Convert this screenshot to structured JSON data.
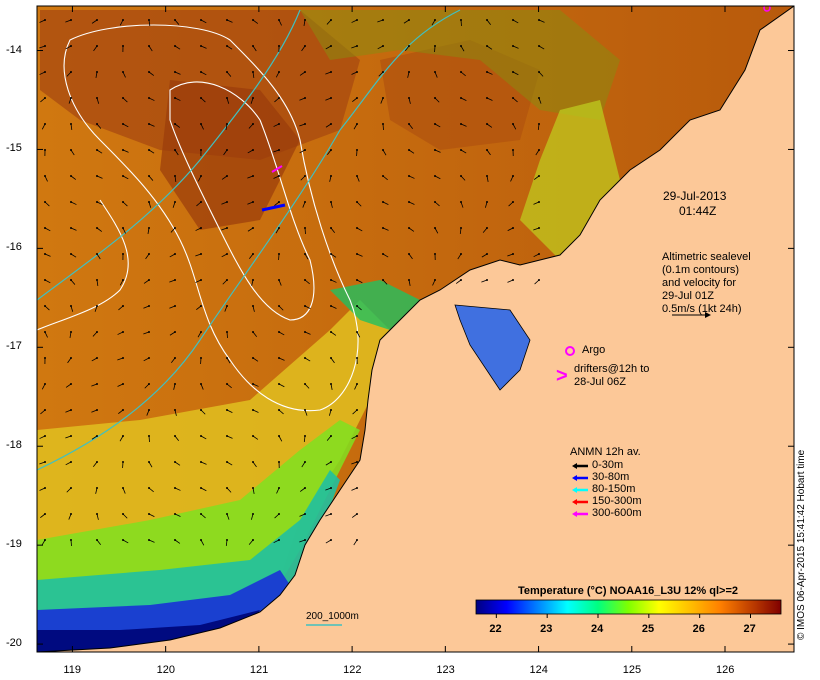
{
  "map": {
    "lon_ticks": [
      "119",
      "120",
      "121",
      "122",
      "123",
      "124",
      "125",
      "126"
    ],
    "lat_ticks": [
      "-14",
      "-15",
      "-16",
      "-17",
      "-18",
      "-19",
      "-20"
    ],
    "extent": {
      "lon_min": 118.62,
      "lon_max": 126.74,
      "lat_min": -20.08,
      "lat_max": -13.55
    }
  },
  "annotations": {
    "date": "29-Jul-2013",
    "time": "01:44Z",
    "alt_line1": "Altimetric sealevel",
    "alt_line2": "(0.1m contours)",
    "alt_line3": "and velocity for",
    "alt_line4": "29-Jul 01Z",
    "alt_line5": "0.5m/s (1kt 24h)",
    "argo": "Argo",
    "drifters_line1": "drifters@12h to",
    "drifters_line2": "28-Jul 06Z",
    "drifters_symbol": ">",
    "depth_contours": "200_1000m"
  },
  "anmn_legend": {
    "title": "ANMN 12h av.",
    "items": [
      {
        "label": "0-30m",
        "color": "#000000"
      },
      {
        "label": "30-80m",
        "color": "#0000ff"
      },
      {
        "label": "80-150m",
        "color": "#00ffff"
      },
      {
        "label": "150-300m",
        "color": "#ff0000"
      },
      {
        "label": "300-600m",
        "color": "#ff00ff"
      }
    ]
  },
  "colorbar": {
    "title": "Temperature (°C) NOAA16_L3U 12% ql>=2",
    "ticks": [
      "22",
      "23",
      "24",
      "25",
      "26",
      "27"
    ],
    "range": [
      21.6,
      27.6
    ],
    "colors": [
      "#000080",
      "#0000ff",
      "#0080ff",
      "#00ffff",
      "#00ff80",
      "#80ff00",
      "#ffff00",
      "#ffc000",
      "#ff8000",
      "#c04000",
      "#800000"
    ]
  },
  "credit": "© IMOS 06-Apr-2015 15:41:42 Hobart time",
  "colors": {
    "land": "#fcc898",
    "contour": "#ffffff",
    "bathy": "#40c0c0",
    "argo": "#ff00ff"
  }
}
